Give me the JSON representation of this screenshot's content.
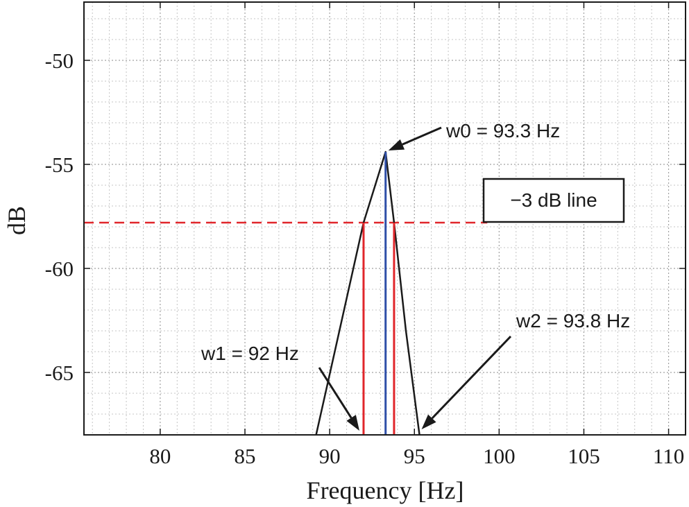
{
  "chart_data": {
    "type": "line",
    "xlabel": "Frequency [Hz]",
    "ylabel": "dB",
    "xlim": [
      75.5,
      111
    ],
    "ylim": [
      -68,
      -47.2
    ],
    "xticks": [
      80,
      85,
      90,
      95,
      100,
      105,
      110
    ],
    "yticks": [
      -50,
      -55,
      -60,
      -65
    ],
    "x_minor_step": 1,
    "y_minor_step": 1,
    "grid": true,
    "series": [
      {
        "color": "#1a1a1a",
        "x": [
          89.2,
          90.3,
          92.0,
          93.3,
          93.8,
          94.5,
          95.3
        ],
        "y": [
          -68,
          -64,
          -57.8,
          -54.4,
          -57.8,
          -63,
          -68
        ]
      }
    ],
    "threshold_line": {
      "y": -57.8,
      "x_end": 99.3,
      "color": "#e0262b"
    },
    "markers": [
      {
        "x": 92.0,
        "color": "#e0262b"
      },
      {
        "x": 93.3,
        "color": "#2f4fa8"
      },
      {
        "x": 93.8,
        "color": "#e0262b"
      }
    ],
    "annotations": {
      "w0": {
        "text": "w0 = 93.3 Hz",
        "x": 93.3,
        "y": -54.4
      },
      "w1": {
        "text": "w1 = 92 Hz",
        "x": 92.0,
        "y": -68
      },
      "w2": {
        "text": "w2 = 93.8 Hz",
        "x": 95.3,
        "y": -68
      },
      "line_label": {
        "text": "−3 dB line"
      }
    }
  }
}
